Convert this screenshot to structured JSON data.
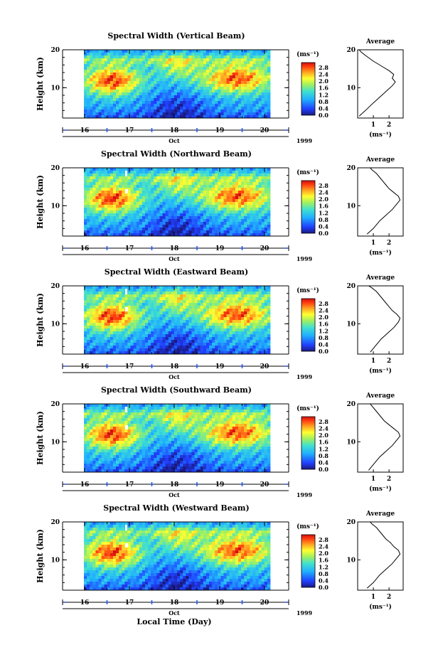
{
  "figure": {
    "xlabel": "Local Time (Day)"
  },
  "chart_data": [
    {
      "type": "heatmap",
      "title": "Spectral Width (Vertical Beam)",
      "ylabel": "Height (km)",
      "ylim": [
        2,
        20
      ],
      "yticks": [
        "20",
        "10"
      ],
      "xticks": [
        "16",
        "17",
        "18",
        "19",
        "20"
      ],
      "month": "Oct",
      "year": "1999",
      "colorbar_unit": "(ms⁻¹)",
      "colorbar_ticks": [
        "2.8",
        "2.4",
        "2.0",
        "1.6",
        "1.2",
        "0.8",
        "0.4",
        "0.0"
      ],
      "profile_title": "Average",
      "profile_xticks": [
        "1",
        "2"
      ],
      "profile_yticks": [
        "20",
        "10"
      ],
      "profile_xlabel": "(ms⁻¹)",
      "profile": {
        "x": [
          0.1,
          0.5,
          1.0,
          1.4,
          1.8,
          2.2,
          2.4,
          2.2,
          2.3,
          2.0,
          1.6,
          1.0,
          0.5,
          0.2,
          0.1
        ],
        "y": [
          2.5,
          4,
          6,
          7.5,
          9,
          10.5,
          11.5,
          12.5,
          13.5,
          14.5,
          15.5,
          17,
          18.5,
          19.5,
          20
        ]
      }
    },
    {
      "type": "heatmap",
      "title": "Spectral Width (Northward Beam)",
      "ylabel": "Height (km)",
      "ylim": [
        2,
        20
      ],
      "yticks": [
        "20",
        "10"
      ],
      "xticks": [
        "16",
        "17",
        "18",
        "19",
        "20"
      ],
      "month": "Oct",
      "year": "1999",
      "colorbar_unit": "(ms⁻¹)",
      "colorbar_ticks": [
        "2.8",
        "2.4",
        "2.0",
        "1.6",
        "1.2",
        "0.8",
        "0.4",
        "0.0"
      ],
      "profile_title": "Average",
      "profile_xticks": [
        "1",
        "2"
      ],
      "profile_yticks": [
        "20",
        "10"
      ],
      "profile_xlabel": "(ms⁻¹)",
      "profile": {
        "x": [
          0.6,
          1.0,
          1.4,
          1.8,
          2.2,
          2.5,
          2.7,
          2.6,
          2.3,
          2.0,
          1.8,
          1.5,
          1.2,
          0.9,
          0.8
        ],
        "y": [
          2.5,
          4,
          6,
          7.5,
          9,
          10.5,
          11.5,
          12.5,
          13.5,
          14.5,
          15.5,
          17,
          18.5,
          19.5,
          20
        ]
      }
    },
    {
      "type": "heatmap",
      "title": "Spectral Width (Eastward Beam)",
      "ylabel": "Height (km)",
      "ylim": [
        2,
        20
      ],
      "yticks": [
        "20",
        "10"
      ],
      "xticks": [
        "16",
        "17",
        "18",
        "19",
        "20"
      ],
      "month": "Oct",
      "year": "1999",
      "colorbar_unit": "(ms⁻¹)",
      "colorbar_ticks": [
        "2.8",
        "2.4",
        "2.0",
        "1.6",
        "1.2",
        "0.8",
        "0.4",
        "0.0"
      ],
      "profile_title": "Average",
      "profile_xticks": [
        "1",
        "2"
      ],
      "profile_yticks": [
        "20",
        "10"
      ],
      "profile_xlabel": "(ms⁻¹)",
      "profile": {
        "x": [
          0.8,
          1.1,
          1.5,
          1.9,
          2.3,
          2.6,
          2.7,
          2.5,
          2.2,
          2.0,
          1.8,
          1.5,
          1.2,
          0.9,
          0.7
        ],
        "y": [
          2.5,
          4,
          6,
          7.5,
          9,
          10.5,
          11.5,
          12.5,
          13.5,
          14.5,
          15.5,
          17,
          18.5,
          19.5,
          20
        ]
      }
    },
    {
      "type": "heatmap",
      "title": "Spectral Width (Southward Beam)",
      "ylabel": "Height (km)",
      "ylim": [
        2,
        20
      ],
      "yticks": [
        "20",
        "10"
      ],
      "xticks": [
        "16",
        "17",
        "18",
        "19",
        "20"
      ],
      "month": "Oct",
      "year": "1999",
      "colorbar_unit": "(ms⁻¹)",
      "colorbar_ticks": [
        "2.8",
        "2.4",
        "2.0",
        "1.6",
        "1.2",
        "0.8",
        "0.4",
        "0.0"
      ],
      "profile_title": "Average",
      "profile_xticks": [
        "1",
        "2"
      ],
      "profile_yticks": [
        "20",
        "10"
      ],
      "profile_xlabel": "(ms⁻¹)",
      "profile": {
        "x": [
          0.7,
          1.0,
          1.4,
          1.8,
          2.2,
          2.5,
          2.7,
          2.6,
          2.3,
          2.0,
          1.7,
          1.4,
          1.1,
          0.9,
          0.8
        ],
        "y": [
          2.5,
          4,
          6,
          7.5,
          9,
          10.5,
          11.5,
          12.5,
          13.5,
          14.5,
          15.5,
          17,
          18.5,
          19.5,
          20
        ]
      }
    },
    {
      "type": "heatmap",
      "title": "Spectral Width (Westward Beam)",
      "ylabel": "Height (km)",
      "ylim": [
        2,
        20
      ],
      "yticks": [
        "20",
        "10"
      ],
      "xticks": [
        "16",
        "17",
        "18",
        "19",
        "20"
      ],
      "month": "Oct",
      "year": "1999",
      "colorbar_unit": "(ms⁻¹)",
      "colorbar_ticks": [
        "2.8",
        "2.4",
        "2.0",
        "1.6",
        "1.2",
        "0.8",
        "0.4",
        "0.0"
      ],
      "profile_title": "Average",
      "profile_xticks": [
        "1",
        "2"
      ],
      "profile_yticks": [
        "20",
        "10"
      ],
      "profile_xlabel": "(ms⁻¹)",
      "profile": {
        "x": [
          0.6,
          1.0,
          1.4,
          1.8,
          2.2,
          2.5,
          2.7,
          2.6,
          2.3,
          2.1,
          1.8,
          1.5,
          1.2,
          0.9,
          0.8
        ],
        "y": [
          2.5,
          4,
          6,
          7.5,
          9,
          10.5,
          11.5,
          12.5,
          13.5,
          14.5,
          15.5,
          17,
          18.5,
          19.5,
          20
        ]
      }
    }
  ]
}
